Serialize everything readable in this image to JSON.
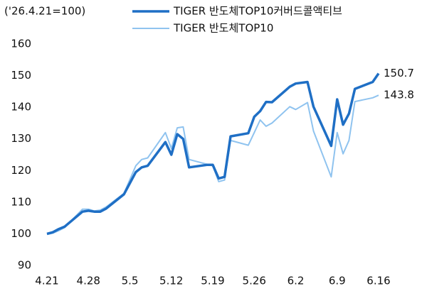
{
  "chart_data": {
    "type": "line",
    "subtitle": "('26.4.21=100)",
    "x": [
      "4.21",
      "4.22",
      "4.23",
      "4.24",
      "4.27",
      "4.28",
      "4.29",
      "4.30",
      "5.1",
      "5.4",
      "5.6",
      "5.7",
      "5.8",
      "5.11",
      "5.12",
      "5.13",
      "5.14",
      "5.15",
      "5.18",
      "5.19",
      "5.20",
      "5.21",
      "5.22",
      "5.25",
      "5.26",
      "5.27",
      "5.28",
      "5.29",
      "6.1",
      "6.2",
      "6.4",
      "6.5",
      "6.8",
      "6.9",
      "6.10",
      "6.11",
      "6.12",
      "6.15",
      "6.16"
    ],
    "series": [
      {
        "name": "TIGER 반도체TOP10커버드콜액티브",
        "color": "#1f6fc5",
        "width": 3.5,
        "values": [
          100,
          100.5,
          101.5,
          102.3,
          107,
          107.3,
          107,
          107,
          108,
          112.5,
          119.5,
          121,
          121.5,
          129,
          125,
          131.5,
          130,
          121,
          121.8,
          121.8,
          117.5,
          118,
          130.8,
          131.8,
          137,
          138.8,
          141.7,
          141.6,
          146.5,
          147.5,
          148,
          140.2,
          127.8,
          142.5,
          134.5,
          138,
          145.8,
          148,
          150.7
        ]
      },
      {
        "name": "TIGER 반도체TOP10",
        "color": "#8fc3ef",
        "width": 2,
        "values": [
          99.8,
          100.2,
          101,
          102,
          107.8,
          107.8,
          107.2,
          107.5,
          108.5,
          112.8,
          121.5,
          123.5,
          124,
          132,
          127,
          133.5,
          133.8,
          123.5,
          122,
          121.5,
          116.5,
          117,
          129.5,
          128,
          132,
          136,
          134,
          135,
          140.2,
          139.3,
          141.5,
          132.5,
          118,
          132,
          125.3,
          129.5,
          141.8,
          143,
          143.8
        ]
      }
    ],
    "xlim": [
      "4.21",
      "6.16"
    ],
    "xticks": [
      "4.21",
      "4.28",
      "5.5",
      "5.12",
      "5.19",
      "5.26",
      "6.2",
      "6.9",
      "6.16"
    ],
    "ylim": [
      90,
      160
    ],
    "yticks": [
      90,
      100,
      110,
      120,
      130,
      140,
      150,
      160
    ]
  }
}
